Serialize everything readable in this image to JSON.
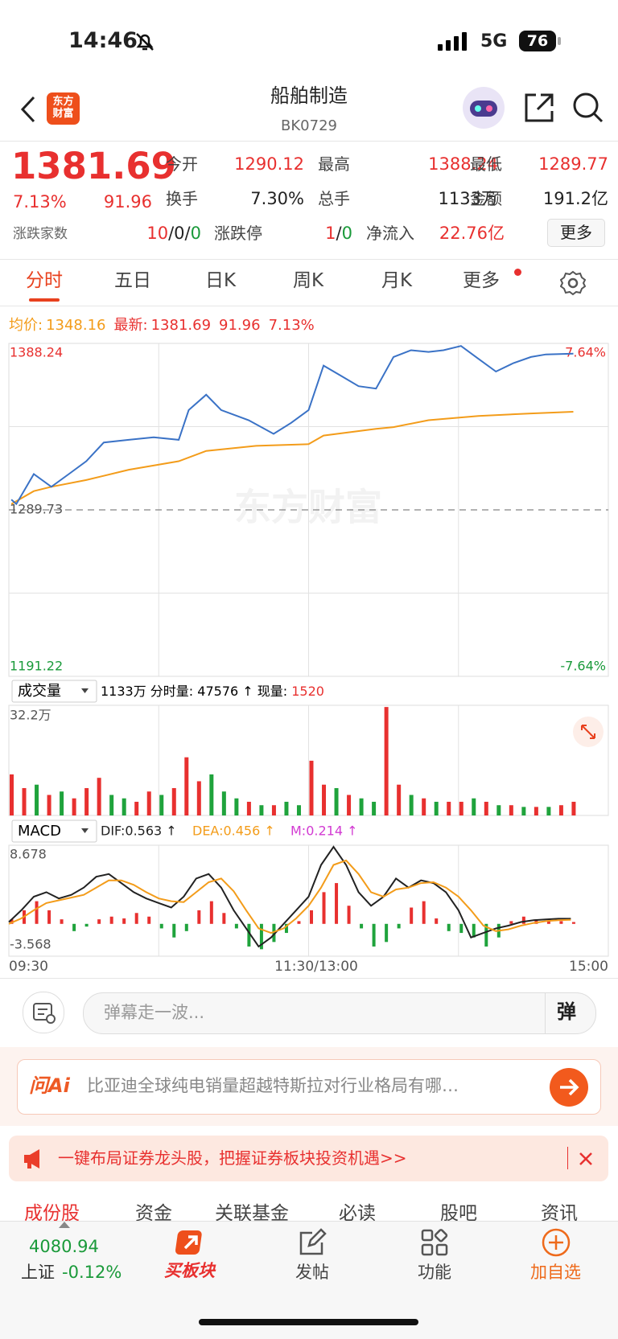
{
  "status": {
    "time": "14:46",
    "network": "5G",
    "battery": "76"
  },
  "header": {
    "title": "船舶制造",
    "code": "BK0729",
    "logo": [
      "东方",
      "财富"
    ]
  },
  "quote": {
    "price": "1381.69",
    "change_pct": "7.13%",
    "change": "91.96",
    "stats": [
      {
        "label": "今开",
        "value": "1290.12"
      },
      {
        "label": "最高",
        "value": "1388.24"
      },
      {
        "label": "最低",
        "value": "1289.77"
      },
      {
        "label": "换手",
        "value": "7.30%"
      },
      {
        "label": "总手",
        "value": "1133万"
      },
      {
        "label": "金额",
        "value": "191.2亿"
      }
    ],
    "separator": "/",
    "breadth": {
      "label": "涨跌家数",
      "up": "10",
      "flat": "0",
      "down": "0"
    },
    "limit": {
      "label": "涨跌停",
      "up": "1",
      "down": "0"
    },
    "inflow": {
      "label": "净流入",
      "value": "22.76亿"
    },
    "more": "更多"
  },
  "tabs": {
    "items": [
      "分时",
      "五日",
      "日K",
      "周K",
      "月K",
      "更多"
    ]
  },
  "intraday": {
    "legend": {
      "avg_label": "均价:",
      "avg": "1348.16",
      "last_label": "最新:",
      "last": "1381.69",
      "change": "91.96",
      "change_pct": "7.13%"
    },
    "watermark": "东方财富",
    "ylim": [
      1191.22,
      1388.24
    ],
    "yticks": [
      1388.24,
      1289.73,
      1191.22
    ],
    "y2lim": [
      -7.64,
      7.64
    ],
    "y2ticks": [
      {
        "value": 7.64,
        "label": "7.64%"
      },
      {
        "value": -7.64,
        "label": "-7.64%"
      }
    ],
    "xlim": [
      0,
      240
    ],
    "price": {
      "color": "#3a72c6",
      "x": [
        1,
        3,
        10,
        17,
        24,
        31,
        38,
        48,
        58,
        68,
        72,
        79,
        85,
        96,
        106,
        113,
        120,
        126,
        133,
        140,
        147,
        154,
        161,
        168,
        174,
        181,
        188,
        195,
        202,
        209,
        215,
        226
      ],
      "values": [
        1295.8,
        1293.2,
        1310.9,
        1303.4,
        1310.9,
        1318.5,
        1329.6,
        1331.2,
        1332.7,
        1331.2,
        1348.8,
        1357.9,
        1348.8,
        1342.8,
        1334.7,
        1341.2,
        1348.8,
        1375.1,
        1369.0,
        1362.9,
        1361.5,
        1380.2,
        1384.2,
        1383.2,
        1384.2,
        1386.7,
        1379.1,
        1371.6,
        1376.6,
        1380.2,
        1381.7,
        1382.2
      ]
    },
    "avg": {
      "color": "#f39c1a",
      "x": [
        1,
        10,
        17,
        31,
        48,
        68,
        79,
        99,
        120,
        126,
        147,
        154,
        168,
        188,
        209,
        226
      ],
      "values": [
        1293.2,
        1300.8,
        1303.4,
        1307.4,
        1313.5,
        1318.5,
        1324.6,
        1327.6,
        1328.6,
        1333.7,
        1337.7,
        1338.7,
        1342.8,
        1345.3,
        1346.8,
        1347.8
      ]
    },
    "time_labels": [
      "09:30",
      "11:30/13:00",
      "15:00"
    ]
  },
  "volume": {
    "selector": "成交量",
    "summary": "1133万 分时量: 47576 ↑ 现量: ",
    "current": "1520",
    "ylim": [
      0,
      32.2
    ],
    "yticks": [
      {
        "value": 32.2,
        "label": "32.2万"
      }
    ],
    "up_color": "#e8302f",
    "down_color": "#1fa33c",
    "x": [
      0,
      5,
      10,
      15,
      20,
      25,
      30,
      35,
      40,
      45,
      50,
      55,
      60,
      65,
      70,
      75,
      80,
      85,
      90,
      95,
      100,
      105,
      110,
      115,
      120,
      125,
      130,
      135,
      140,
      145,
      150,
      155,
      160,
      165,
      170,
      175,
      180,
      185,
      190,
      195,
      200,
      205,
      210,
      215,
      220,
      225
    ],
    "values": [
      12,
      8,
      9,
      6,
      7,
      5,
      8,
      11,
      6,
      5,
      4,
      7,
      6,
      8,
      17,
      10,
      12,
      7,
      5,
      4,
      3,
      3,
      4,
      3,
      16,
      9,
      8,
      6,
      5,
      4,
      31.7,
      9,
      6,
      5,
      4,
      4,
      4,
      5,
      4,
      3,
      3,
      2.5,
      2.5,
      2.5,
      3,
      4
    ],
    "rising": [
      true,
      true,
      false,
      true,
      false,
      true,
      true,
      true,
      false,
      false,
      true,
      true,
      false,
      true,
      true,
      true,
      false,
      false,
      false,
      true,
      false,
      true,
      false,
      false,
      true,
      true,
      false,
      true,
      false,
      false,
      true,
      true,
      false,
      true,
      false,
      true,
      true,
      false,
      true,
      false,
      true,
      false,
      true,
      false,
      true,
      true
    ]
  },
  "macd": {
    "selector": "MACD",
    "dif_label": "DIF:0.563 ↑",
    "dea_label": "DEA:0.456 ↑",
    "m_label": "M:0.214 ↑",
    "ylim": [
      -3.568,
      8.678
    ],
    "yticks": [
      8.678,
      -3.568
    ],
    "up_color": "#e8302f",
    "down_color": "#1fa33c",
    "x": [
      0,
      5,
      10,
      15,
      20,
      25,
      30,
      35,
      40,
      45,
      50,
      55,
      60,
      65,
      70,
      75,
      80,
      85,
      90,
      95,
      100,
      105,
      110,
      115,
      120,
      125,
      130,
      135,
      140,
      145,
      150,
      155,
      160,
      165,
      170,
      175,
      180,
      185,
      190,
      195,
      200,
      205,
      210,
      215,
      220,
      225
    ],
    "hist": [
      0.5,
      1.5,
      2.5,
      1.5,
      0.5,
      -0.8,
      -0.3,
      0.5,
      0.8,
      0.6,
      1.2,
      0.8,
      -0.5,
      -1.5,
      -0.8,
      1.5,
      2.5,
      1.2,
      -0.5,
      -2.5,
      -2.8,
      -2,
      -1,
      0.3,
      1.5,
      3.5,
      4.5,
      2,
      -0.5,
      -2.5,
      -2,
      -0.5,
      1.8,
      2.5,
      0.6,
      -0.8,
      -1,
      -1.5,
      -2.5,
      -1.5,
      0.3,
      0.8,
      0.5,
      0.4,
      0.3,
      0.2
    ],
    "dif": {
      "color": "#222222",
      "values": [
        0.2,
        1.5,
        3,
        3.5,
        2.8,
        3.2,
        4,
        5.2,
        5.5,
        4.5,
        3.5,
        2.8,
        2.3,
        1.8,
        3,
        5,
        5.5,
        4,
        1.5,
        -0.5,
        -2.5,
        -1.5,
        0,
        1.5,
        3,
        6.5,
        8.5,
        6.5,
        3.5,
        2,
        3,
        5,
        4,
        4.8,
        4.5,
        3.5,
        1.5,
        -1.5,
        -1,
        -0.5,
        -0.2,
        0.2,
        0.4,
        0.5,
        0.563,
        0.563
      ]
    },
    "dea": {
      "color": "#f39c1a",
      "values": [
        0,
        0.6,
        1.5,
        2.3,
        2.6,
        2.9,
        3.2,
        4,
        4.8,
        4.8,
        4.3,
        3.5,
        2.8,
        2.5,
        2.4,
        3.5,
        4.6,
        5,
        3.6,
        1.5,
        -0.5,
        -1,
        -0.5,
        0.6,
        2,
        4,
        6.5,
        7,
        5.5,
        3.5,
        3,
        3.8,
        4,
        4.5,
        4.6,
        4,
        3,
        1.5,
        -0.2,
        -0.8,
        -0.6,
        -0.2,
        0.1,
        0.3,
        0.4,
        0.456
      ]
    }
  },
  "input": {
    "placeholder": "弹幕走一波...",
    "button": "弹"
  },
  "ai": {
    "badge": "问Ai",
    "text": "比亚迪全球纯电销量超越特斯拉对行业格局有哪…"
  },
  "promo": {
    "text": "一键布局证券龙头股，把握证券板块投资机遇>>"
  },
  "sections": [
    "成份股",
    "资金",
    "关联基金",
    "必读",
    "股吧",
    "资讯"
  ],
  "nav": {
    "index_value": "4080.94",
    "index_name": "上证",
    "index_change": "-0.12%",
    "items": [
      "买板块",
      "发帖",
      "功能",
      "加自选"
    ]
  }
}
